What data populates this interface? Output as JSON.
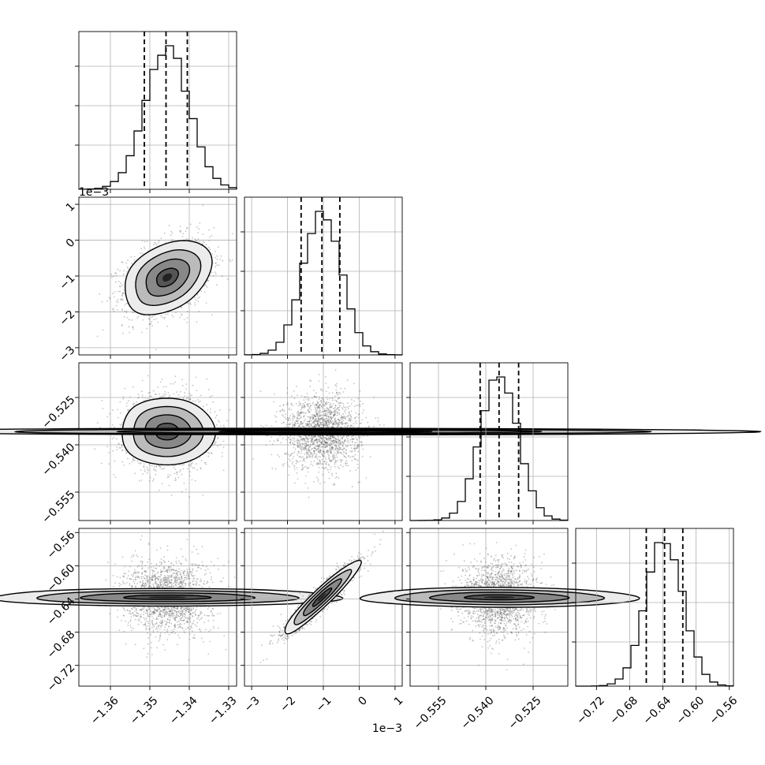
{
  "chart_data": {
    "type": "corner",
    "title": "",
    "grid": true,
    "parameters": [
      {
        "index": 0,
        "range": [
          -1.368,
          -1.328
        ],
        "ticks": [
          -1.36,
          -1.35,
          -1.34,
          -1.33
        ],
        "tick_labels": [
          "−1.36",
          "−1.35",
          "−1.34",
          "−1.33"
        ],
        "offset_text": "",
        "mean": -1.3456,
        "sigma": 0.0055,
        "quantiles": [
          -1.3514,
          -1.3459,
          -1.3405
        ]
      },
      {
        "index": 1,
        "range": [
          -0.0032,
          0.0012
        ],
        "ticks": [
          -0.003,
          -0.002,
          -0.001,
          0.0,
          0.001
        ],
        "tick_labels": [
          "−3",
          "−2",
          "−1",
          "0",
          "1"
        ],
        "offset_text": "1e−3",
        "mean": -0.00104,
        "sigma": 0.00053,
        "quantiles": [
          -0.00162,
          -0.00104,
          -0.00054
        ]
      },
      {
        "index": 2,
        "range": [
          -0.564,
          -0.514
        ],
        "ticks": [
          -0.555,
          -0.54,
          -0.525
        ],
        "tick_labels": [
          "−0.555",
          "−0.540",
          "−0.525"
        ],
        "offset_text": "",
        "mean": -0.5358,
        "sigma": 0.0059,
        "quantiles": [
          -0.5418,
          -0.5358,
          -0.5296
        ]
      },
      {
        "index": 3,
        "range": [
          -0.745,
          -0.555
        ],
        "ticks": [
          -0.72,
          -0.68,
          -0.64,
          -0.6,
          -0.56
        ],
        "tick_labels": [
          "−0.72",
          "−0.68",
          "−0.64",
          "−0.60",
          "−0.56"
        ],
        "offset_text": "",
        "mean": -0.638,
        "sigma": 0.022,
        "quantiles": [
          -0.66,
          -0.638,
          -0.616
        ]
      }
    ],
    "correlations": [
      {
        "pair": [
          1,
          0
        ],
        "rho": 0.35
      },
      {
        "pair": [
          2,
          0
        ],
        "rho": 0.0
      },
      {
        "pair": [
          2,
          1
        ],
        "rho": 0.0
      },
      {
        "pair": [
          3,
          0
        ],
        "rho": 0.0
      },
      {
        "pair": [
          3,
          1
        ],
        "rho": 0.94
      },
      {
        "pair": [
          3,
          2
        ],
        "rho": 0.0
      }
    ],
    "contour_levels_sigma": [
      0.5,
      1.0,
      1.5,
      2.0
    ],
    "histogram_bins": 20
  }
}
